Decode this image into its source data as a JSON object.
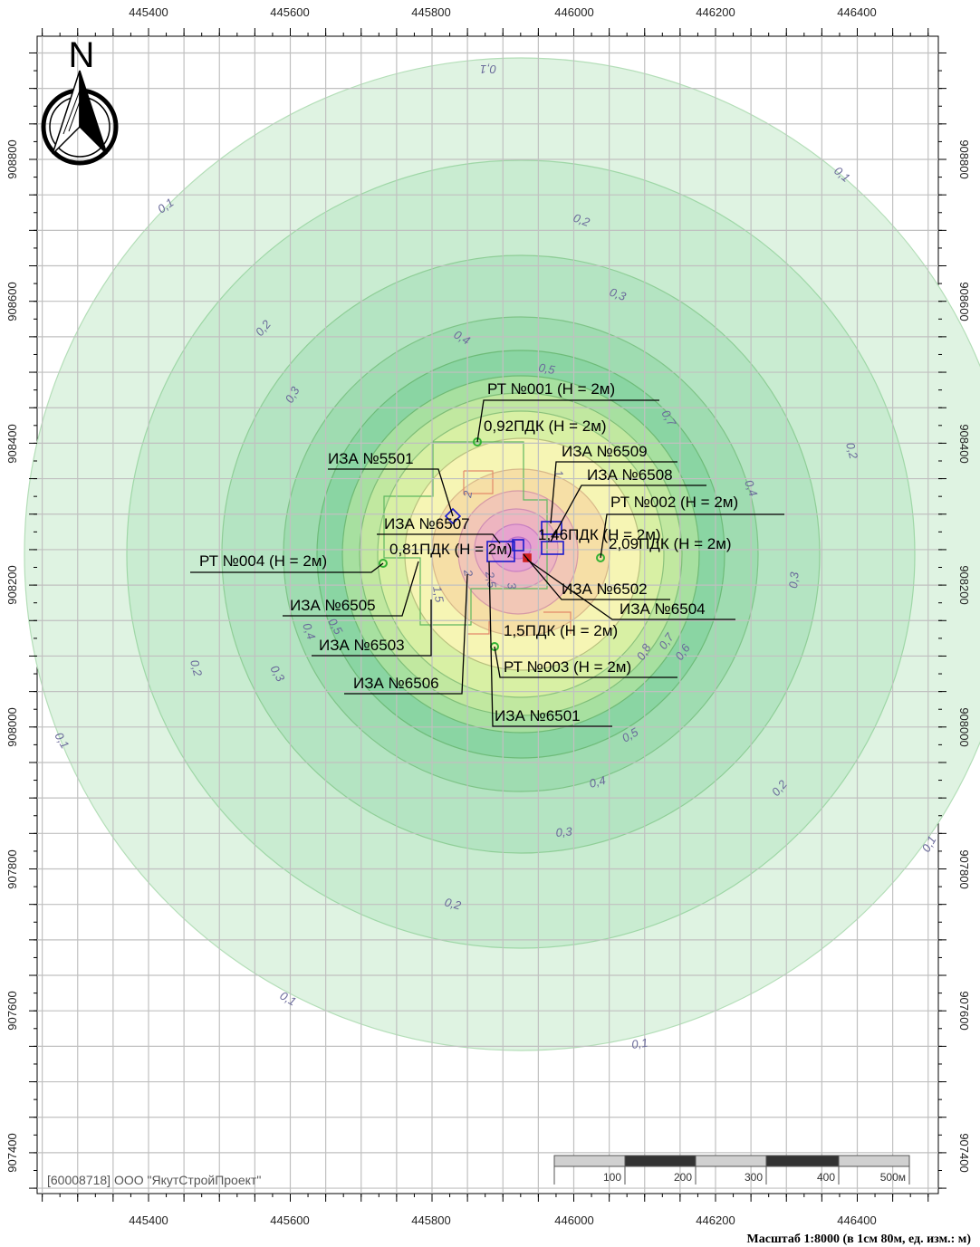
{
  "map": {
    "x_ticks": [
      "445400",
      "445600",
      "445800",
      "446000",
      "446200",
      "446400"
    ],
    "y_ticks": [
      "908800",
      "908600",
      "908400",
      "908200",
      "908000",
      "907800",
      "907600",
      "907400"
    ],
    "north_label": "N",
    "organization": "[60008718] ООО \"ЯкутСтройПроект\"",
    "scale_text": "Масштаб 1:8000 (в 1см 80м, ед. изм.: м)",
    "scale_bar": {
      "labels": [
        "100",
        "200",
        "300",
        "400",
        "500м"
      ]
    },
    "isoline_labels": [
      "0,1",
      "0,2",
      "0,3",
      "0,4",
      "0,5",
      "0,6",
      "0,7",
      "0,8",
      "1",
      "1,5",
      "2",
      "2,5",
      "3"
    ],
    "colors": {
      "zone_01": "#dff3e2",
      "zone_02": "#c9ecd1",
      "zone_03": "#b4e4c2",
      "zone_04": "#9fdcb1",
      "zone_05": "#8ad5a3",
      "zone_06": "#a7e0a0",
      "zone_08": "#d8f0a4",
      "zone_1": "#f6f5b4",
      "zone_15": "#f6dfa6",
      "zone_2": "#f2c7b6",
      "zone_25": "#eeb5c0",
      "zone_3": "#e7a3cf",
      "source_marker": "#1a1acc",
      "point_marker": "#34b234"
    },
    "callouts": {
      "rt001": "РТ №001 (Н = 2м)",
      "pdk092": "0,92ПДК (Н = 2м)",
      "iza6509": "ИЗА №6509",
      "iza5501": "ИЗА №5501",
      "iza6508": "ИЗА №6508",
      "rt002": "РТ №002 (Н = 2м)",
      "iza6507": "ИЗА №6507",
      "pdk146": "1,46ПДК (Н = 2м)",
      "pdk209": "2,09ПДК (Н = 2м)",
      "pdk081": "0,81ПДК (Н = 2м)",
      "rt004": "РТ №004 (Н = 2м)",
      "iza6502": "ИЗА №6502",
      "iza6505": "ИЗА №6505",
      "iza6504": "ИЗА №6504",
      "pdk15": "1,5ПДК (Н = 2м)",
      "iza6503": "ИЗА №6503",
      "rt003": "РТ №003 (Н = 2м)",
      "iza6506": "ИЗА №6506",
      "iza6501": "ИЗА №6501"
    }
  }
}
